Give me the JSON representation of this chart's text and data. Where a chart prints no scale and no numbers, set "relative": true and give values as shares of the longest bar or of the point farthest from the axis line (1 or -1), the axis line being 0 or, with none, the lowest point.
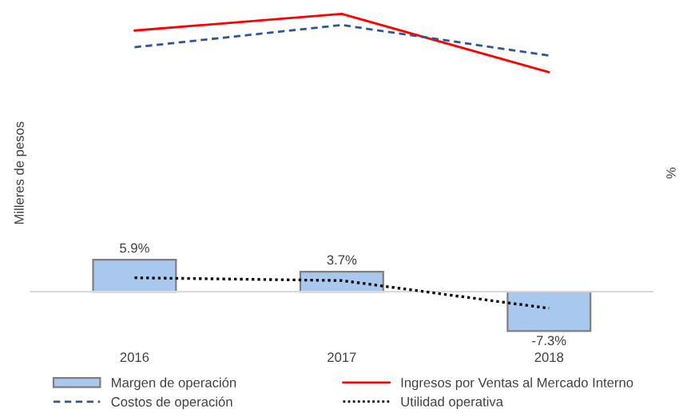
{
  "chart_data": [
    {
      "type": "bar",
      "y2label": "%",
      "categories": [
        "2016",
        "2017",
        "2018"
      ],
      "legend": "bottom",
      "tick_labels": "x",
      "series": [
        {
          "name": "Margen de operación",
          "axis": "y2",
          "color": "#a9c8ee",
          "values": [
            5.9,
            3.7,
            -7.3
          ],
          "value_labels": [
            "5.9%",
            "3.7%",
            "-7.3%"
          ]
        }
      ]
    },
    {
      "type": "line",
      "ylabel": "Milleres de pesos",
      "relative": true,
      "categories": [
        "2016",
        "2017",
        "2018"
      ],
      "legend": "bottom",
      "tick_labels": false,
      "series": [
        {
          "name": "Ingresos por Ventas al Mercado Interno",
          "color": "#ff0000",
          "line_style": "solid",
          "values": [
            0.94,
            1,
            0.79
          ]
        },
        {
          "name": "Costos de operación",
          "color": "#2f5597",
          "line_style": "dashed",
          "values": [
            0.88,
            0.96,
            0.85
          ]
        },
        {
          "name": "Utilidad operativa",
          "color": "#000000",
          "line_style": "dotted",
          "values": [
            0.05,
            0.04,
            -0.06
          ]
        }
      ]
    }
  ]
}
